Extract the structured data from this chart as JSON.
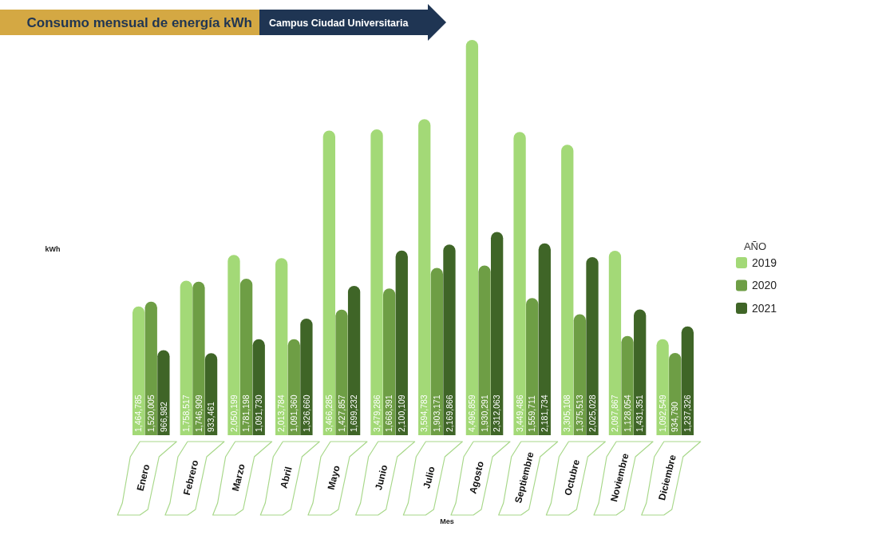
{
  "chart_data": {
    "type": "bar",
    "title": "Consumo mensual de energía kWh",
    "subtitle": "Campus Ciudad Universitaria",
    "xlabel": "Mes",
    "legend_title": "AÑO",
    "legend": "right",
    "annotations": [
      "kWh"
    ],
    "categories": [
      "Enero",
      "Febrero",
      "Marzo",
      "Abril",
      "Mayo",
      "Junio",
      "Julio",
      "Agosto",
      "Septiembre",
      "Octubre",
      "Noviembre",
      "Diciembre"
    ],
    "series": [
      {
        "name": "2019",
        "color": "#a3d977",
        "values": [
          1464785,
          1758517,
          2050199,
          2013784,
          3466285,
          3479286,
          3594783,
          4496859,
          3449486,
          3305108,
          2097867,
          1092549
        ],
        "value_labels": [
          "1,464,785",
          "1,758,517",
          "2,050,199",
          "2,013,784",
          "3,466,285",
          "3,479,286",
          "3,594,783",
          "4,496,859",
          "3,449,486",
          "3,305,108",
          "2,097,867",
          "1,092,549"
        ]
      },
      {
        "name": "2020",
        "color": "#6e9e45",
        "values": [
          1520005,
          1746909,
          1781198,
          1091360,
          1427857,
          1668391,
          1903171,
          1930291,
          1559711,
          1375513,
          1128054,
          934790
        ],
        "value_labels": [
          "1,520,005",
          "1,746,909",
          "1,781,198",
          "1,091,360",
          "1,427,857",
          "1,668,391",
          "1,903,171",
          "1,930,291",
          "1,559,711",
          "1,375,513",
          "1,128,054",
          "934,790"
        ]
      },
      {
        "name": "2021",
        "color": "#3f6527",
        "values": [
          966982,
          933461,
          1091730,
          1326660,
          1699232,
          2100109,
          2169866,
          2312063,
          2181734,
          2025028,
          1431351,
          1237326
        ],
        "value_labels": [
          "966,982",
          "933,461",
          "1,091,730",
          "1,326,660",
          "1,699,232",
          "2,100,109",
          "2,169,866",
          "2,312,063",
          "2,181,734",
          "2,025,028",
          "1,431,351",
          "1,237,326"
        ]
      }
    ]
  }
}
